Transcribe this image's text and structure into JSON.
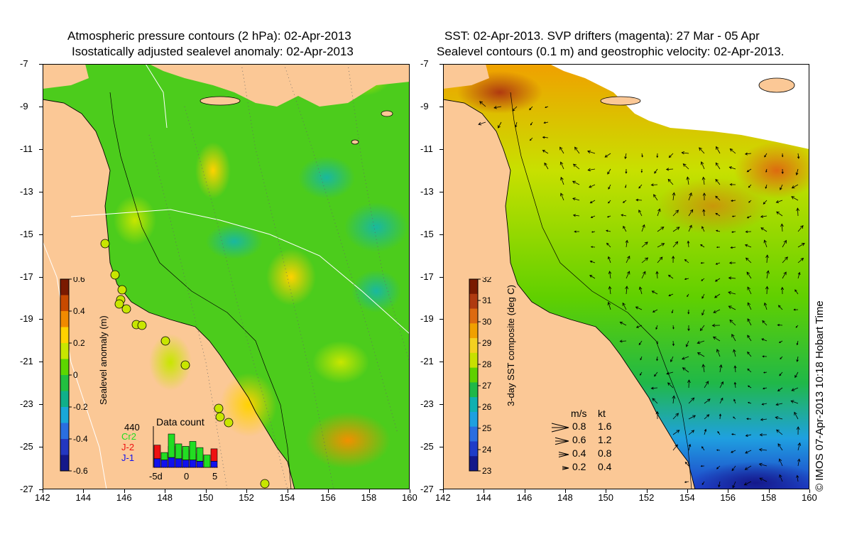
{
  "left_panel": {
    "title_line1": "Atmospheric pressure contours (2 hPa): 02-Apr-2013",
    "title_line2": "Isostatically adjusted sealevel anomaly: 02-Apr-2013",
    "colorbar": {
      "label": "Sealevel anomaly (m)",
      "ticks": [
        "0.6",
        "0.4",
        "0.2",
        "0",
        "-0.2",
        "-0.4",
        "-0.6"
      ],
      "colors": [
        "#7a1a00",
        "#c84a00",
        "#f08a00",
        "#ffd200",
        "#c8e600",
        "#5cd700",
        "#22c040",
        "#10b08a",
        "#19a8d8",
        "#2a6ee0",
        "#2437c0",
        "#14188a"
      ]
    },
    "data_count": {
      "title": "Data count",
      "total": "440",
      "series": [
        {
          "name": "Cr2",
          "color": "#22dd22"
        },
        {
          "name": "J-2",
          "color": "#ee1111"
        },
        {
          "name": "J-1",
          "color": "#1111ee"
        }
      ],
      "x_ticks": [
        "-5d",
        "0",
        "5"
      ],
      "bars": [
        {
          "j1": 0.35,
          "j2": 0.55,
          "cr2": 0.0
        },
        {
          "j1": 0.3,
          "j2": 0.0,
          "cr2": 0.3
        },
        {
          "j1": 0.4,
          "j2": 0.45,
          "cr2": 0.95
        },
        {
          "j1": 0.35,
          "j2": 0.0,
          "cr2": 0.6
        },
        {
          "j1": 0.3,
          "j2": 0.4,
          "cr2": 0.55
        },
        {
          "j1": 0.3,
          "j2": 0.0,
          "cr2": 0.75
        },
        {
          "j1": 0.25,
          "j2": 0.3,
          "cr2": 0.55
        },
        {
          "j1": 0.0,
          "j2": 0.0,
          "cr2": 0.5
        },
        {
          "j1": 0.25,
          "j2": 0.5,
          "cr2": 0.0
        }
      ]
    }
  },
  "right_panel": {
    "title_line1": "SST: 02-Apr-2013. SVP drifters (magenta): 27 Mar - 05 Apr",
    "title_line2": "Sealevel contours (0.1 m) and geostrophic velocity: 02-Apr-2013.",
    "colorbar": {
      "label": "3-day SST composite (deg C)",
      "ticks": [
        "32",
        "31",
        "30",
        "29",
        "28",
        "27",
        "26",
        "25",
        "24",
        "23"
      ],
      "colors": [
        "#7a1a00",
        "#b03a10",
        "#dd6a10",
        "#f0a000",
        "#f4d020",
        "#c8e000",
        "#60d000",
        "#20b848",
        "#10b0b0",
        "#1fa0e0",
        "#2a6ee0",
        "#1f3cc8",
        "#14188a"
      ]
    },
    "velocity_legend": {
      "header_ms": "m/s",
      "header_kt": "kt",
      "rows": [
        {
          "ms": "0.8",
          "kt": "1.6",
          "size": 1.0
        },
        {
          "ms": "0.6",
          "kt": "1.2",
          "size": 0.75
        },
        {
          "ms": "0.4",
          "kt": "0.8",
          "size": 0.5
        },
        {
          "ms": "0.2",
          "kt": "0.4",
          "size": 0.25
        }
      ]
    }
  },
  "axes": {
    "x_ticks": [
      "142",
      "144",
      "146",
      "148",
      "150",
      "152",
      "154",
      "156",
      "158",
      "160"
    ],
    "y_ticks": [
      "-7",
      "-9",
      "-11",
      "-13",
      "-15",
      "-17",
      "-19",
      "-21",
      "-23",
      "-25",
      "-27"
    ]
  },
  "credit": "© IMOS 07-Apr-2013 10:18 Hobart Time",
  "colors": {
    "land": "#fbc896",
    "no_data": "#ffffff"
  }
}
